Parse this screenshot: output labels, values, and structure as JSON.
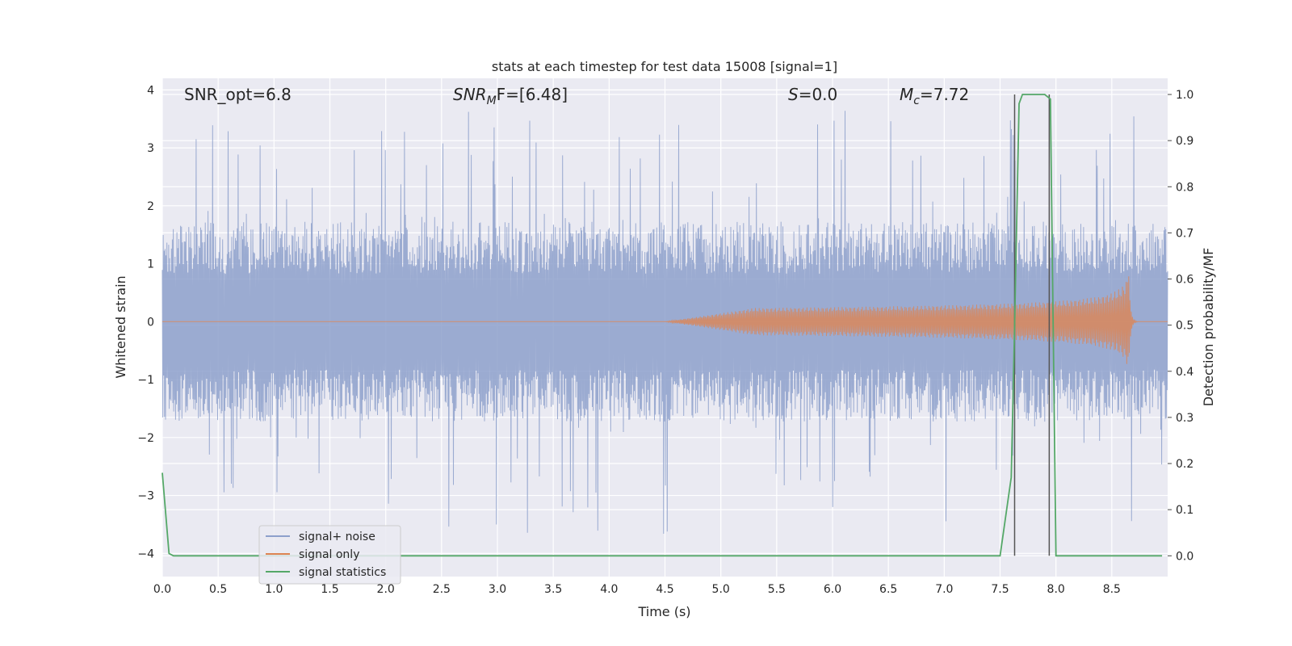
{
  "chart_data": {
    "type": "line",
    "title": "stats at each timestep for test data 15008 [signal=1]",
    "xlabel": "Time (s)",
    "ylabel_left": "Whitened strain",
    "ylabel_right": "Detection probability/MF",
    "xlim": [
      0.0,
      9.0
    ],
    "ylim_left": [
      -4.4,
      4.2
    ],
    "ylim_right": [
      -0.045,
      1.035
    ],
    "x_ticks": [
      "0.0",
      "0.5",
      "1.0",
      "1.5",
      "2.0",
      "2.5",
      "3.0",
      "3.5",
      "4.0",
      "4.5",
      "5.0",
      "5.5",
      "6.0",
      "6.5",
      "7.0",
      "7.5",
      "8.0",
      "8.5"
    ],
    "y_ticks_left": [
      "4",
      "3",
      "2",
      "1",
      "0",
      "−1",
      "−2",
      "−3",
      "−4"
    ],
    "y_ticks_right": [
      "1.0",
      "0.9",
      "0.8",
      "0.7",
      "0.6",
      "0.5",
      "0.4",
      "0.3",
      "0.2",
      "0.1",
      "0.0"
    ],
    "grid": true,
    "legend_position": "lower-left",
    "annotations": {
      "snr_opt": "SNR_opt=6.8",
      "snr_mf_main": "SNR",
      "snr_mf_sub": "M",
      "snr_mf_rest": "F=[6.48]",
      "s_main": "S",
      "s_rest": "=0.0",
      "mc_main": "M",
      "mc_sub": "c",
      "mc_rest": "=7.72"
    },
    "series": [
      {
        "name": "signal+ noise",
        "color": "#8da0cb",
        "kind": "noise",
        "envelope_typical": 1.5,
        "peaks_max": 3.7,
        "troughs_min": -4.0
      },
      {
        "name": "signal only",
        "color": "#dd8452",
        "kind": "chirp",
        "start": 4.5,
        "merger": 8.65,
        "peak_amplitude": 0.85
      },
      {
        "name": "signal statistics",
        "color": "#55a868",
        "axis": "right",
        "x": [
          0.0,
          0.06,
          0.1,
          0.15,
          7.5,
          7.6,
          7.63,
          7.67,
          7.7,
          7.75,
          7.9,
          7.95,
          8.0,
          8.05,
          8.95
        ],
        "values": [
          0.18,
          0.005,
          0.0,
          0.0,
          0.0,
          0.17,
          0.5,
          0.98,
          1.0,
          1.0,
          1.0,
          0.99,
          0.0,
          0.0,
          0.0
        ]
      }
    ],
    "vertical_lines": [
      7.63,
      7.94
    ]
  }
}
